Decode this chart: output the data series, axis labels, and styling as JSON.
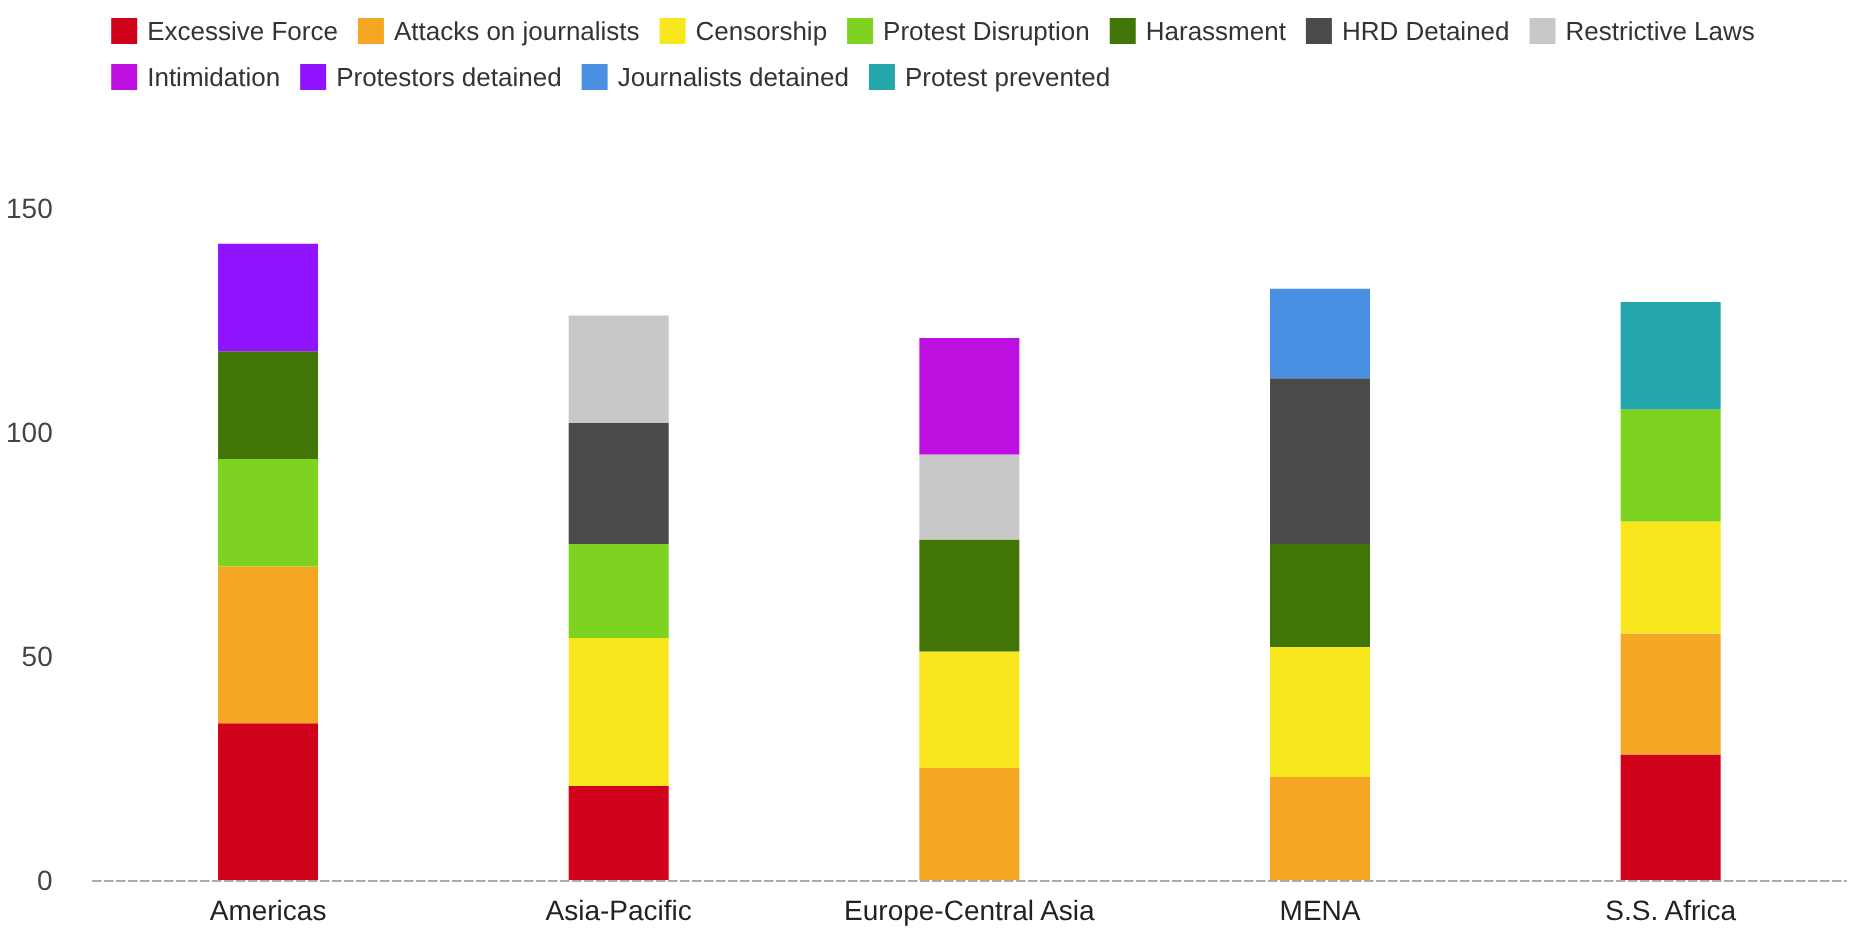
{
  "chart_data": {
    "type": "bar",
    "stacked": true,
    "categories": [
      "Americas",
      "Asia-Pacific",
      "Europe-Central Asia",
      "MENA",
      "S.S. Africa"
    ],
    "series": [
      {
        "name": "Excessive Force",
        "color": "#d0021b",
        "values": [
          35,
          21,
          null,
          null,
          28
        ]
      },
      {
        "name": "Attacks on journalists",
        "color": "#f5a623",
        "values": [
          35,
          null,
          25,
          23,
          27
        ]
      },
      {
        "name": "Censorship",
        "color": "#f8e71c",
        "values": [
          null,
          33,
          26,
          29,
          25
        ]
      },
      {
        "name": "Protest Disruption",
        "color": "#7ed321",
        "values": [
          24,
          21,
          null,
          null,
          25
        ]
      },
      {
        "name": "Harassment",
        "color": "#417505",
        "values": [
          24,
          null,
          25,
          23,
          null
        ]
      },
      {
        "name": "HRD Detained",
        "color": "#4a4a4a",
        "values": [
          null,
          27,
          null,
          37,
          null
        ]
      },
      {
        "name": "Restrictive Laws",
        "color": "#c8c8c8",
        "values": [
          null,
          24,
          19,
          null,
          null
        ]
      },
      {
        "name": "Intimidation",
        "color": "#bd10e0",
        "values": [
          null,
          null,
          26,
          null,
          null
        ]
      },
      {
        "name": "Protestors detained",
        "color": "#9013fe",
        "values": [
          24,
          null,
          null,
          null,
          null
        ]
      },
      {
        "name": "Journalists detained",
        "color": "#4a90e2",
        "values": [
          null,
          null,
          null,
          20,
          null
        ]
      },
      {
        "name": "Protest prevented",
        "color": "#25a6ab",
        "values": [
          null,
          null,
          null,
          null,
          24
        ]
      }
    ],
    "ylim": [
      0,
      150
    ],
    "yticks": [
      0,
      50,
      100,
      150
    ],
    "grid": false,
    "legend": "top"
  }
}
